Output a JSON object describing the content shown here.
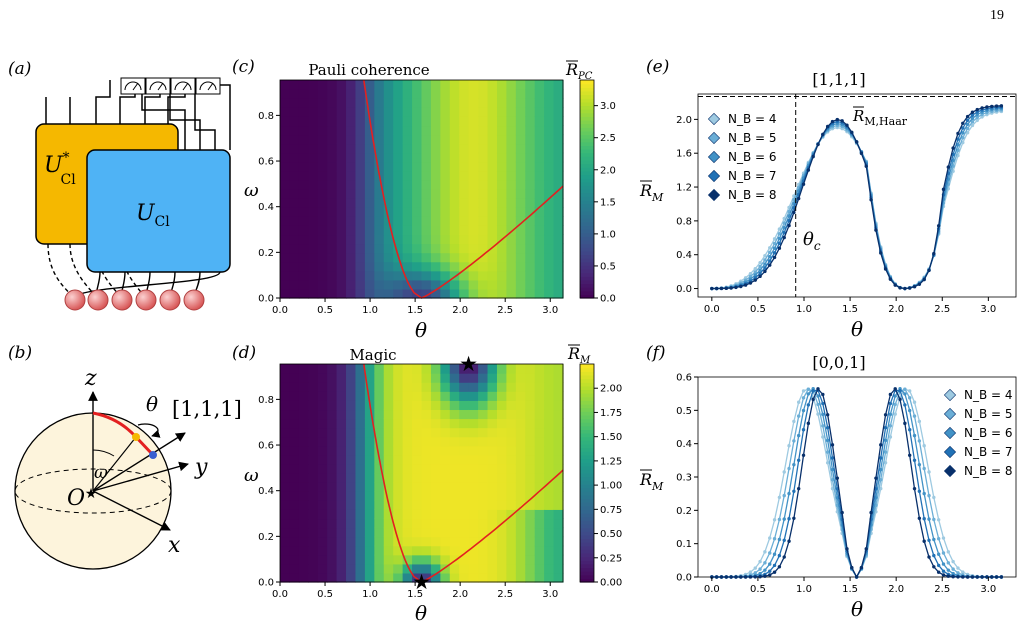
{
  "page_number": "19",
  "panels": {
    "a": {
      "label": "(a)",
      "u_conj": "U",
      "u_conj_sup": "*",
      "u_conj_sub": "Cl",
      "u": "U",
      "u_sub": "Cl"
    },
    "b": {
      "label": "(b)",
      "z": "z",
      "x": "x",
      "y": "y",
      "origin": "O",
      "theta": "θ",
      "omega": "ω",
      "dir": "[1,1,1]"
    },
    "c": {
      "label": "(c)",
      "title": "Pauli coherence",
      "cbar_label": "R",
      "cbar_sub": "PC",
      "ylabel": "ω",
      "xlabel": "θ"
    },
    "d": {
      "label": "(d)",
      "title": "Magic",
      "cbar_label": "R",
      "cbar_sub": "M",
      "ylabel": "ω",
      "xlabel": "θ"
    },
    "e": {
      "label": "(e)",
      "title": "[1,1,1]",
      "ylabel": "R",
      "ylabel_sub": "M",
      "xlabel": "θ",
      "haar_label": "R",
      "haar_sub": "M,Haar",
      "theta_c": "θ",
      "theta_c_sub": "c"
    },
    "f": {
      "label": "(f)",
      "title": "[0,0,1]",
      "ylabel": "R",
      "ylabel_sub": "M",
      "xlabel": "θ"
    }
  },
  "legend": {
    "entries": [
      "N_B = 4",
      "N_B = 5",
      "N_B = 6",
      "N_B = 7",
      "N_B = 8"
    ],
    "nb_values": [
      4,
      5,
      6,
      7,
      8
    ],
    "prefix": "N",
    "prefix_sub": "B",
    "colors": [
      "#9ecae1",
      "#6baed6",
      "#4292c6",
      "#2171b5",
      "#08306b"
    ]
  },
  "colors": {
    "u_conj_box": "#f5b800",
    "u_box": "#4fb3f5",
    "red_line": "#e32020",
    "sphere": "#fdf4dc",
    "qubit": "#e06060"
  },
  "chart_data": [
    {
      "type": "heatmap",
      "panel": "c",
      "title": "Pauli coherence",
      "xlabel": "θ",
      "ylabel": "ω",
      "xlim": [
        0,
        3.14159
      ],
      "ylim": [
        0,
        0.955
      ],
      "xticks": [
        "0.0",
        "0.5",
        "1.0",
        "1.5",
        "2.0",
        "2.5",
        "3.0"
      ],
      "yticks": [
        "0.0",
        "0.2",
        "0.4",
        "0.6",
        "0.8"
      ],
      "colorbar": {
        "min": 0,
        "max": 3.4,
        "ticks": [
          "0.0",
          "0.5",
          "1.0",
          "1.5",
          "2.0",
          "2.5",
          "3.0"
        ]
      }
    },
    {
      "type": "heatmap",
      "panel": "d",
      "title": "Magic",
      "xlabel": "θ",
      "ylabel": "ω",
      "xlim": [
        0,
        3.14159
      ],
      "ylim": [
        0,
        0.955
      ],
      "xticks": [
        "0.0",
        "0.5",
        "1.0",
        "1.5",
        "2.0",
        "2.5",
        "3.0"
      ],
      "yticks": [
        "0.0",
        "0.2",
        "0.4",
        "0.6",
        "0.8"
      ],
      "colorbar": {
        "min": 0,
        "max": 2.25,
        "ticks": [
          "0.00",
          "0.25",
          "0.50",
          "0.75",
          "1.00",
          "1.25",
          "1.50",
          "1.75",
          "2.00"
        ]
      },
      "stars": [
        {
          "x": 1.571,
          "y": 0.0
        },
        {
          "x": 2.094,
          "y": 0.955
        }
      ]
    },
    {
      "type": "line",
      "panel": "e",
      "title": "[1,1,1]",
      "xlabel": "θ",
      "ylabel": "R_M",
      "xlim": [
        -0.15,
        3.3
      ],
      "ylim": [
        -0.1,
        2.3
      ],
      "xticks": [
        "0.0",
        "0.5",
        "1.0",
        "1.5",
        "2.0",
        "2.5",
        "3.0"
      ],
      "yticks": [
        "0.0",
        "0.4",
        "0.8",
        "1.2",
        "1.6",
        "2.0"
      ],
      "haar_value": 2.27,
      "theta_c": 0.91
    },
    {
      "type": "line",
      "panel": "f",
      "title": "[0,0,1]",
      "xlabel": "θ",
      "ylabel": "R_M",
      "xlim": [
        -0.15,
        3.3
      ],
      "ylim": [
        0,
        0.6
      ],
      "xticks": [
        "0.0",
        "0.5",
        "1.0",
        "1.5",
        "2.0",
        "2.5",
        "3.0"
      ],
      "yticks": [
        "0.0",
        "0.1",
        "0.2",
        "0.3",
        "0.4",
        "0.5",
        "0.6"
      ]
    }
  ]
}
